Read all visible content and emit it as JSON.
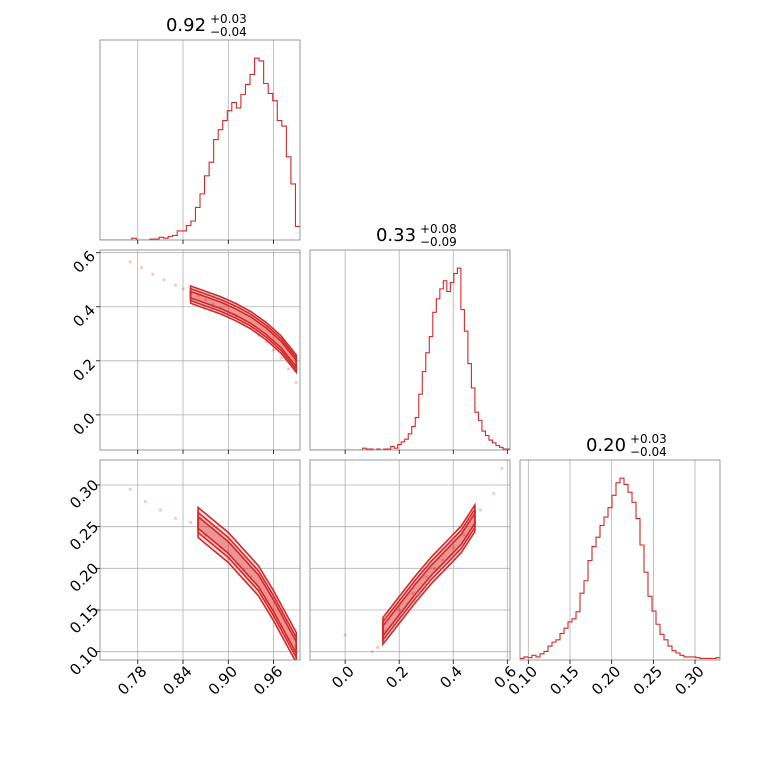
{
  "accent_color": "#d62728",
  "chart_data": {
    "type": "corner",
    "parameters": [
      "p0",
      "p1",
      "p2"
    ],
    "ranges": {
      "p0": [
        0.73,
        0.995
      ],
      "p1": [
        -0.13,
        0.61
      ],
      "p2": [
        0.09,
        0.33
      ]
    },
    "ticks": {
      "p0": [
        0.78,
        0.84,
        0.9,
        0.96
      ],
      "p1": [
        0.0,
        0.2,
        0.4,
        0.6
      ],
      "p2": [
        0.1,
        0.15,
        0.2,
        0.25,
        0.3
      ]
    },
    "tick_labels": {
      "p0": [
        "0.78",
        "0.84",
        "0.90",
        "0.96"
      ],
      "p1": [
        "0.0",
        "0.2",
        "0.4",
        "0.6"
      ],
      "p2": [
        "0.10",
        "0.15",
        "0.20",
        "0.25",
        "0.30"
      ]
    },
    "titles": [
      {
        "value": "0.92",
        "plus": "+0.03",
        "minus": "−0.04"
      },
      {
        "value": "0.33",
        "plus": "+0.08",
        "minus": "−0.09"
      },
      {
        "value": "0.20",
        "plus": "+0.03",
        "minus": "−0.04"
      }
    ],
    "grid": true,
    "histograms": [
      {
        "param": "p0",
        "values": [
          0,
          0,
          0,
          0,
          0,
          0,
          0,
          0.2,
          0,
          0,
          0,
          0.1,
          0.1,
          0.3,
          0.2,
          0.4,
          0.5,
          1,
          1,
          1.6,
          2.1,
          3.6,
          5.1,
          7.1,
          8.6,
          11.1,
          12.2,
          13.2,
          14.3,
          15.2,
          14.6,
          16.1,
          17.2,
          18.3,
          20.1,
          19.8,
          17.3,
          16.2,
          15.4,
          13.2,
          12.6,
          9.2,
          6.2,
          1.5
        ]
      },
      {
        "param": "p1",
        "values": [
          0,
          0,
          0,
          0,
          0,
          0,
          0,
          0,
          0,
          0,
          0,
          0,
          0,
          0,
          0,
          0.2,
          0.1,
          0.1,
          0,
          0.1,
          0,
          0.1,
          0.1,
          0.4,
          0.2,
          0.6,
          0.9,
          1.2,
          1.8,
          2.6,
          3.6,
          6.2,
          8.7,
          10.8,
          12.6,
          15.3,
          16.8,
          17.9,
          18.8,
          17.6,
          18.6,
          19.6,
          20.2,
          15.6,
          13.2,
          9.6,
          6.9,
          4.2,
          3.3,
          2.1,
          1.6,
          1.1,
          0.8,
          0.5,
          0.3,
          0.1,
          0.1
        ]
      },
      {
        "param": "p2",
        "values": [
          0.2,
          0.4,
          0.3,
          0.6,
          0.4,
          0.8,
          1.1,
          1.8,
          2.3,
          2.6,
          3.4,
          4.1,
          4.9,
          5.3,
          6.2,
          8.6,
          10.2,
          12.8,
          14.6,
          15.8,
          17.3,
          18.4,
          19.6,
          21.2,
          22.8,
          23.4,
          22.6,
          21.6,
          20.3,
          18.2,
          14.8,
          11.3,
          8.2,
          6.3,
          4.6,
          3.3,
          2.6,
          1.8,
          1.2,
          0.9,
          0.6,
          0.4,
          0.4,
          0.4,
          0.3,
          0.2,
          0.2,
          0.2,
          0.2,
          0.3
        ]
      }
    ],
    "scatter_2d": [
      {
        "x_param": "p0",
        "y_param": "p1",
        "points": [
          [
            0.77,
            0.566
          ],
          [
            0.785,
            0.545
          ],
          [
            0.8,
            0.52
          ],
          [
            0.815,
            0.5
          ],
          [
            0.83,
            0.48
          ],
          [
            0.84,
            0.466
          ],
          [
            0.85,
            0.452
          ],
          [
            0.86,
            0.44
          ],
          [
            0.87,
            0.425
          ],
          [
            0.88,
            0.41
          ],
          [
            0.89,
            0.395
          ],
          [
            0.9,
            0.38
          ],
          [
            0.91,
            0.362
          ],
          [
            0.92,
            0.34
          ],
          [
            0.93,
            0.32
          ],
          [
            0.94,
            0.295
          ],
          [
            0.95,
            0.27
          ],
          [
            0.96,
            0.24
          ],
          [
            0.97,
            0.21
          ],
          [
            0.98,
            0.17
          ],
          [
            0.99,
            0.12
          ]
        ]
      },
      {
        "x_param": "p0",
        "y_param": "p2",
        "points": [
          [
            0.77,
            0.295
          ],
          [
            0.79,
            0.28
          ],
          [
            0.81,
            0.27
          ],
          [
            0.83,
            0.26
          ],
          [
            0.85,
            0.255
          ],
          [
            0.87,
            0.24
          ],
          [
            0.89,
            0.225
          ],
          [
            0.9,
            0.212
          ],
          [
            0.91,
            0.205
          ],
          [
            0.92,
            0.198
          ],
          [
            0.93,
            0.19
          ],
          [
            0.94,
            0.175
          ],
          [
            0.95,
            0.16
          ],
          [
            0.96,
            0.145
          ],
          [
            0.97,
            0.13
          ],
          [
            0.98,
            0.115
          ],
          [
            0.99,
            0.105
          ]
        ]
      },
      {
        "x_param": "p1",
        "y_param": "p2",
        "points": [
          [
            0.0,
            0.12
          ],
          [
            0.1,
            0.1
          ],
          [
            0.12,
            0.105
          ],
          [
            0.15,
            0.125
          ],
          [
            0.2,
            0.15
          ],
          [
            0.25,
            0.17
          ],
          [
            0.3,
            0.19
          ],
          [
            0.33,
            0.2
          ],
          [
            0.36,
            0.21
          ],
          [
            0.4,
            0.225
          ],
          [
            0.44,
            0.24
          ],
          [
            0.48,
            0.255
          ],
          [
            0.5,
            0.27
          ],
          [
            0.55,
            0.29
          ],
          [
            0.58,
            0.32
          ]
        ]
      }
    ],
    "contours_2d": [
      {
        "x_param": "p0",
        "y_param": "p1",
        "ridge": [
          [
            0.85,
            0.445
          ],
          [
            0.87,
            0.425
          ],
          [
            0.89,
            0.405
          ],
          [
            0.91,
            0.38
          ],
          [
            0.93,
            0.35
          ],
          [
            0.95,
            0.31
          ],
          [
            0.97,
            0.26
          ],
          [
            0.99,
            0.19
          ]
        ],
        "widths": [
          0.012,
          0.022,
          0.032
        ]
      },
      {
        "x_param": "p0",
        "y_param": "p2",
        "ridge": [
          [
            0.86,
            0.255
          ],
          [
            0.88,
            0.24
          ],
          [
            0.9,
            0.225
          ],
          [
            0.92,
            0.205
          ],
          [
            0.94,
            0.185
          ],
          [
            0.96,
            0.155
          ],
          [
            0.975,
            0.13
          ],
          [
            0.99,
            0.105
          ]
        ],
        "widths": [
          0.007,
          0.012,
          0.018
        ]
      },
      {
        "x_param": "p1",
        "y_param": "p2",
        "ridge": [
          [
            0.14,
            0.125
          ],
          [
            0.2,
            0.15
          ],
          [
            0.26,
            0.175
          ],
          [
            0.32,
            0.198
          ],
          [
            0.38,
            0.218
          ],
          [
            0.43,
            0.235
          ],
          [
            0.48,
            0.26
          ]
        ],
        "widths": [
          0.006,
          0.011,
          0.016
        ]
      }
    ]
  }
}
